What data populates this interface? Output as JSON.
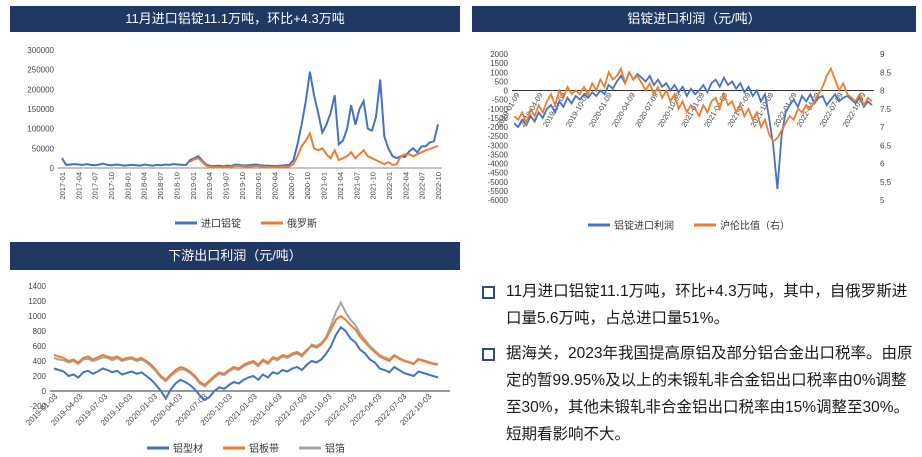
{
  "chart_data": [
    {
      "type": "line",
      "title": "11月进口铝锭11.1万吨，环比+4.3万吨",
      "x_tick_labels": [
        "2017-01",
        "2017-04",
        "2017-07",
        "2017-10",
        "2018-01",
        "2018-04",
        "2018-07",
        "2018-10",
        "2019-01",
        "2019-04",
        "2019-07",
        "2019-10",
        "2020-01",
        "2020-04",
        "2020-07",
        "2020-10",
        "2021-01",
        "2021-04",
        "2021-07",
        "2021-10",
        "2022-01",
        "2022-04",
        "2022-07",
        "2022-10"
      ],
      "y_ticks": [
        "0",
        "50000",
        "100000",
        "150000",
        "200000",
        "250000",
        "300000"
      ],
      "ylim": [
        0,
        300000
      ],
      "series": [
        {
          "name": "进口铝锭",
          "color": "#4472c4",
          "values": [
            25000,
            8000,
            9000,
            10000,
            9000,
            8000,
            10000,
            8000,
            7000,
            9000,
            11000,
            8000,
            7000,
            9000,
            8000,
            6000,
            7000,
            8000,
            7000,
            6000,
            9000,
            7000,
            6000,
            8000,
            7000,
            9000,
            8000,
            10000,
            9000,
            8000,
            8000,
            20000,
            25000,
            30000,
            18000,
            8000,
            5000,
            5000,
            6000,
            4000,
            6000,
            5000,
            9000,
            8000,
            6000,
            7000,
            8000,
            9000,
            7000,
            6000,
            6000,
            5000,
            5000,
            6000,
            7000,
            8000,
            20000,
            60000,
            110000,
            170000,
            245000,
            185000,
            140000,
            90000,
            110000,
            140000,
            185000,
            60000,
            70000,
            100000,
            160000,
            110000,
            150000,
            170000,
            100000,
            95000,
            130000,
            225000,
            80000,
            50000,
            30000,
            25000,
            30000,
            28000,
            42000,
            50000,
            40000,
            55000,
            55000,
            65000,
            68000,
            111000
          ]
        },
        {
          "name": "俄罗斯",
          "color": "#ed7d31",
          "values": [
            null,
            null,
            null,
            null,
            null,
            null,
            null,
            null,
            null,
            null,
            null,
            null,
            null,
            null,
            null,
            null,
            null,
            null,
            null,
            null,
            null,
            null,
            null,
            null,
            null,
            null,
            null,
            null,
            null,
            null,
            null,
            15000,
            22000,
            25000,
            15000,
            5000,
            3000,
            2000,
            2000,
            2000,
            2000,
            3000,
            5000,
            5000,
            4000,
            3000,
            4000,
            5000,
            4000,
            3000,
            2000,
            2000,
            2000,
            3000,
            3000,
            4000,
            10000,
            30000,
            55000,
            70000,
            88000,
            50000,
            45000,
            50000,
            35000,
            25000,
            45000,
            20000,
            25000,
            30000,
            40000,
            25000,
            35000,
            45000,
            30000,
            25000,
            20000,
            15000,
            10000,
            15000,
            8000,
            10000,
            30000,
            35000,
            35000,
            30000,
            35000,
            40000,
            45000,
            48000,
            52000,
            56000
          ]
        }
      ]
    },
    {
      "type": "line",
      "title": "铝锭进口利润（元/吨）",
      "x_tick_labels": [
        "2019-01-09",
        "2019-04-09",
        "2019-07-09",
        "2019-10-09",
        "2020-01-09",
        "2020-04-09",
        "2020-07-09",
        "2020-10-09",
        "2021-01-09",
        "2021-04-09",
        "2021-07-09",
        "2021-10-09",
        "2022-01-09",
        "2022-04-09",
        "2022-07-09",
        "2022-10-09"
      ],
      "y_left_ticks": [
        "2000",
        "1500",
        "1000",
        "500",
        "0",
        "-500",
        "-1000",
        "-1500",
        "-2000",
        "-2500",
        "-3000",
        "-3500",
        "-4000",
        "-4500",
        "-5000",
        "-5500",
        "-6000"
      ],
      "y_left_lim": [
        -6000,
        2000
      ],
      "y_right_ticks": [
        "9",
        "8.5",
        "8",
        "7.5",
        "7",
        "6.5",
        "6",
        "5.5",
        "5"
      ],
      "y_right_lim": [
        5,
        9
      ],
      "series": [
        {
          "name": "铝锭进口利润",
          "axis": "left",
          "color": "#4472c4",
          "values": [
            -1800,
            -2000,
            -1600,
            -1900,
            -1400,
            -1700,
            -1200,
            -1500,
            -1000,
            -800,
            -1200,
            -600,
            -900,
            -400,
            -700,
            -300,
            -500,
            -200,
            -400,
            -100,
            -300,
            0,
            -200,
            300,
            100,
            500,
            800,
            400,
            1000,
            600,
            900,
            700,
            500,
            800,
            300,
            600,
            200,
            400,
            0,
            300,
            -100,
            200,
            -300,
            100,
            -200,
            0,
            300,
            -100,
            400,
            600,
            200,
            700,
            300,
            500,
            100,
            400,
            -100,
            200,
            -300,
            0,
            -600,
            -200,
            -1500,
            -3000,
            -5400,
            -2500,
            -1200,
            -800,
            -500,
            -900,
            -300,
            -600,
            -200,
            -700,
            -400,
            -300,
            -800,
            -500,
            -200,
            -600,
            -400,
            -300,
            -500,
            -700,
            -400,
            -900,
            -600,
            -800
          ]
        },
        {
          "name": "沪伦比值（右）",
          "axis": "right",
          "color": "#ed7d31",
          "values": [
            7.3,
            7.2,
            7.4,
            7.1,
            7.5,
            7.3,
            7.6,
            7.4,
            7.7,
            7.9,
            7.6,
            8.0,
            7.8,
            8.1,
            7.9,
            8.0,
            7.9,
            8.1,
            7.9,
            8.2,
            8.0,
            8.3,
            8.1,
            8.5,
            8.3,
            8.4,
            8.6,
            8.2,
            8.5,
            8.3,
            8.4,
            8.2,
            8.0,
            8.2,
            7.9,
            8.1,
            7.8,
            8.0,
            7.7,
            7.9,
            7.5,
            7.7,
            7.4,
            7.6,
            7.5,
            7.3,
            7.6,
            7.4,
            7.7,
            7.8,
            7.5,
            7.9,
            7.6,
            7.7,
            7.4,
            7.6,
            7.3,
            7.5,
            7.2,
            7.4,
            7.0,
            7.2,
            6.8,
            6.6,
            6.7,
            6.9,
            7.1,
            7.3,
            7.2,
            7.5,
            7.4,
            7.6,
            7.5,
            7.7,
            7.9,
            8.1,
            8.4,
            8.6,
            8.3,
            8.0,
            8.2,
            7.9,
            7.8,
            7.7,
            7.9,
            7.6,
            7.8,
            7.7
          ]
        }
      ]
    },
    {
      "type": "line",
      "title": "下游出口利润（元/吨）",
      "x_tick_labels": [
        "2019-01-03",
        "2019-04-03",
        "2019-07-03",
        "2019-10-03",
        "2020-01-03",
        "2020-04-03",
        "2020-07-03",
        "2020-10-03",
        "2021-01-03",
        "2021-04-03",
        "2021-07-03",
        "2021-10-03",
        "2022-01-03",
        "2022-04-03",
        "2022-07-03",
        "2022-10-03"
      ],
      "y_ticks": [
        "1400",
        "1200",
        "1000",
        "800",
        "600",
        "400",
        "200",
        "0",
        "-200"
      ],
      "ylim": [
        -200,
        1400
      ],
      "series": [
        {
          "name": "铝型材",
          "color": "#4472c4",
          "values": [
            300,
            280,
            260,
            200,
            220,
            180,
            250,
            270,
            230,
            260,
            300,
            280,
            250,
            270,
            220,
            240,
            260,
            230,
            250,
            200,
            150,
            80,
            0,
            -100,
            20,
            100,
            150,
            120,
            80,
            20,
            -60,
            -120,
            -80,
            0,
            50,
            30,
            80,
            120,
            100,
            150,
            180,
            200,
            150,
            220,
            180,
            250,
            230,
            280,
            260,
            300,
            320,
            280,
            350,
            400,
            380,
            420,
            500,
            600,
            750,
            850,
            800,
            700,
            650,
            550,
            500,
            420,
            380,
            300,
            280,
            250,
            320,
            280,
            240,
            220,
            200,
            260,
            240,
            220,
            200,
            180
          ]
        },
        {
          "name": "铝板带",
          "color": "#ed7d31",
          "values": [
            480,
            460,
            440,
            400,
            420,
            380,
            440,
            460,
            420,
            450,
            480,
            460,
            440,
            460,
            420,
            440,
            450,
            420,
            440,
            400,
            350,
            280,
            200,
            150,
            220,
            280,
            320,
            300,
            260,
            200,
            120,
            80,
            140,
            200,
            250,
            230,
            280,
            320,
            300,
            350,
            380,
            400,
            350,
            420,
            380,
            450,
            430,
            480,
            460,
            500,
            520,
            480,
            550,
            600,
            580,
            620,
            700,
            820,
            950,
            1000,
            950,
            880,
            820,
            720,
            650,
            580,
            520,
            460,
            430,
            400,
            470,
            430,
            400,
            380,
            360,
            420,
            400,
            380,
            360,
            350
          ]
        },
        {
          "name": "铝箔",
          "color": "#a5a5a5",
          "values": [
            440,
            420,
            410,
            380,
            400,
            360,
            420,
            430,
            400,
            420,
            450,
            440,
            410,
            440,
            400,
            420,
            430,
            400,
            420,
            380,
            330,
            260,
            180,
            130,
            200,
            250,
            290,
            280,
            240,
            180,
            100,
            60,
            120,
            180,
            230,
            210,
            260,
            300,
            280,
            330,
            360,
            380,
            330,
            400,
            360,
            430,
            410,
            460,
            440,
            480,
            500,
            460,
            530,
            620,
            600,
            640,
            720,
            880,
            1050,
            1180,
            1050,
            950,
            880,
            760,
            680,
            600,
            540,
            480,
            450,
            420,
            480,
            440,
            410,
            390,
            370,
            430,
            410,
            390,
            370,
            360
          ]
        }
      ]
    }
  ],
  "bullets": [
    "11月进口铝锭11.1万吨，环比+4.3万吨，其中，自俄罗斯进口量5.6万吨，占总进口量51%。",
    "据海关，2023年我国提高原铝及部分铝合金出口税率。由原定的暂99.95%及以上的未锻轧非合金铝出口税率由0%调整至30%，其他未锻轧非合金铝出口税率由15%调整至30%。短期看影响不大。"
  ]
}
